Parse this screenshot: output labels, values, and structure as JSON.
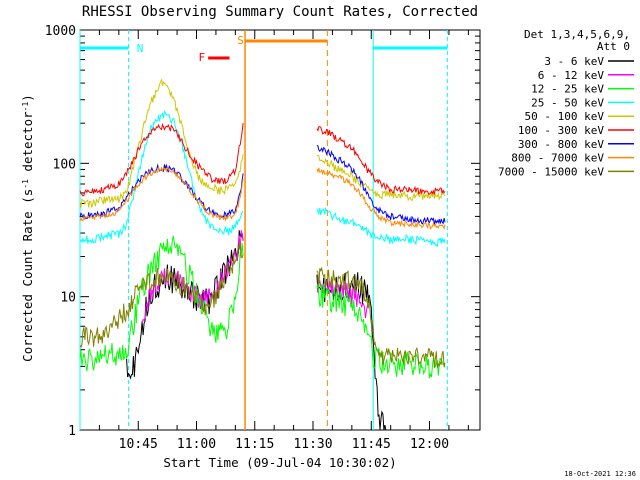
{
  "chart_data": {
    "type": "line",
    "title": "RHESSI Observing Summary Count Rates, Corrected",
    "xlabel": "Start Time (09-Jul-04 10:30:02)",
    "ylabel_main": "Corrected Count Rate (s",
    "ylabel_sup1": "-1",
    "ylabel_mid": " detector",
    "ylabel_sup2": "-1",
    "ylabel_end": ")",
    "ylabel": "Corrected Count Rate (s-1 detector-1)",
    "yscale": "log",
    "ylim": [
      1,
      1000
    ],
    "xlim_min": [
      0,
      103
    ],
    "y_ticks": [
      {
        "value": 1,
        "label": "1"
      },
      {
        "value": 10,
        "label": "10"
      },
      {
        "value": 100,
        "label": "100"
      },
      {
        "value": 1000,
        "label": "1000"
      }
    ],
    "x_ticks": [
      {
        "min": 15,
        "label": "10:45"
      },
      {
        "min": 30,
        "label": "11:00"
      },
      {
        "min": 45,
        "label": "11:15"
      },
      {
        "min": 60,
        "label": "11:30"
      },
      {
        "min": 75,
        "label": "11:45"
      },
      {
        "min": 90,
        "label": "12:00"
      }
    ],
    "legend_title": [
      "Det 1,3,4,5,6,9,",
      "Att 0"
    ],
    "legend_placement": "right",
    "timestamp": "18-Oct-2021 12:36",
    "gap": [
      42.5,
      61
    ],
    "series": [
      {
        "name": "3 - 6 keV",
        "color": "#000000",
        "points": [
          [
            12,
            2.8
          ],
          [
            13,
            2.6
          ],
          [
            14,
            3.3
          ],
          [
            15,
            4.2
          ],
          [
            16,
            6
          ],
          [
            17,
            8.5
          ],
          [
            18,
            11
          ],
          [
            20,
            13
          ],
          [
            22,
            14
          ],
          [
            24,
            14
          ],
          [
            26,
            13
          ],
          [
            28,
            11
          ],
          [
            30,
            10
          ],
          [
            32,
            9.5
          ],
          [
            34,
            10
          ],
          [
            36,
            13
          ],
          [
            38,
            17
          ],
          [
            40,
            22
          ],
          [
            41,
            26
          ],
          [
            42,
            33
          ]
        ],
        "points2": [
          [
            61,
            12
          ],
          [
            64,
            12
          ],
          [
            67,
            12
          ],
          [
            70,
            13
          ],
          [
            72,
            12
          ],
          [
            74,
            11
          ],
          [
            75,
            9
          ],
          [
            76,
            3
          ],
          [
            77,
            1.2
          ],
          [
            78,
            1.1
          ],
          [
            79,
            1.1
          ]
        ]
      },
      {
        "name": "6 - 12 keV",
        "color": "#ff00ff",
        "points": [
          [
            16,
            6.5
          ],
          [
            18,
            10
          ],
          [
            20,
            13
          ],
          [
            22,
            14
          ],
          [
            24,
            14
          ],
          [
            26,
            13
          ],
          [
            28,
            11
          ],
          [
            30,
            10
          ],
          [
            32,
            9.5
          ],
          [
            34,
            10
          ],
          [
            36,
            13
          ],
          [
            38,
            16
          ],
          [
            40,
            20
          ],
          [
            42,
            30
          ]
        ],
        "points2": [
          [
            61,
            12
          ],
          [
            65,
            11.5
          ],
          [
            69,
            11
          ],
          [
            72,
            9
          ],
          [
            74,
            8
          ]
        ]
      },
      {
        "name": "12 - 25 keV",
        "color": "#00ff00",
        "points": [
          [
            0,
            3.5
          ],
          [
            6,
            3.6
          ],
          [
            10,
            3.8
          ],
          [
            12,
            4.2
          ],
          [
            14,
            7
          ],
          [
            16,
            12
          ],
          [
            18,
            16
          ],
          [
            20,
            20
          ],
          [
            22,
            23
          ],
          [
            24,
            24
          ],
          [
            26,
            20
          ],
          [
            28,
            15
          ],
          [
            30,
            11
          ],
          [
            32,
            8
          ],
          [
            34,
            6
          ],
          [
            36,
            5.2
          ],
          [
            38,
            6
          ],
          [
            40,
            10
          ],
          [
            41,
            16
          ],
          [
            42,
            25
          ]
        ],
        "points2": [
          [
            61,
            11
          ],
          [
            64,
            10
          ],
          [
            67,
            9.5
          ],
          [
            70,
            8.5
          ],
          [
            72,
            7
          ],
          [
            74,
            5
          ],
          [
            76,
            3.5
          ],
          [
            80,
            3.2
          ],
          [
            85,
            3.2
          ],
          [
            90,
            3
          ],
          [
            94,
            3
          ]
        ]
      },
      {
        "name": "25 - 50 keV",
        "color": "#00ffff",
        "points": [
          [
            0,
            26
          ],
          [
            6,
            28
          ],
          [
            10,
            30
          ],
          [
            12,
            35
          ],
          [
            14,
            60
          ],
          [
            16,
            110
          ],
          [
            18,
            180
          ],
          [
            20,
            220
          ],
          [
            22,
            230
          ],
          [
            24,
            210
          ],
          [
            26,
            150
          ],
          [
            28,
            90
          ],
          [
            30,
            52
          ],
          [
            32,
            38
          ],
          [
            34,
            33
          ],
          [
            36,
            31
          ],
          [
            38,
            31
          ],
          [
            40,
            34
          ],
          [
            41,
            38
          ],
          [
            42,
            45
          ]
        ],
        "points2": [
          [
            61,
            45
          ],
          [
            64,
            42
          ],
          [
            67,
            38
          ],
          [
            70,
            36
          ],
          [
            72,
            33
          ],
          [
            74,
            30
          ],
          [
            76,
            28
          ],
          [
            80,
            27
          ],
          [
            85,
            27
          ],
          [
            90,
            26
          ],
          [
            94,
            26
          ]
        ]
      },
      {
        "name": "50 - 100 keV",
        "color": "#ccc800",
        "points": [
          [
            0,
            50
          ],
          [
            6,
            52
          ],
          [
            10,
            55
          ],
          [
            12,
            62
          ],
          [
            14,
            100
          ],
          [
            16,
            170
          ],
          [
            18,
            280
          ],
          [
            20,
            360
          ],
          [
            21,
            400
          ],
          [
            22,
            390
          ],
          [
            24,
            300
          ],
          [
            26,
            200
          ],
          [
            28,
            120
          ],
          [
            30,
            85
          ],
          [
            32,
            70
          ],
          [
            34,
            65
          ],
          [
            36,
            63
          ],
          [
            38,
            64
          ],
          [
            40,
            70
          ],
          [
            41,
            85
          ],
          [
            42,
            120
          ]
        ],
        "points2": [
          [
            61,
            110
          ],
          [
            64,
            100
          ],
          [
            67,
            90
          ],
          [
            70,
            80
          ],
          [
            72,
            72
          ],
          [
            74,
            65
          ],
          [
            76,
            60
          ],
          [
            80,
            58
          ],
          [
            85,
            57
          ],
          [
            90,
            57
          ],
          [
            94,
            57
          ]
        ]
      },
      {
        "name": "100 - 300 keV",
        "color": "#ff0000",
        "points": [
          [
            0,
            60
          ],
          [
            6,
            63
          ],
          [
            10,
            70
          ],
          [
            12,
            85
          ],
          [
            14,
            110
          ],
          [
            16,
            140
          ],
          [
            18,
            170
          ],
          [
            20,
            185
          ],
          [
            22,
            190
          ],
          [
            24,
            180
          ],
          [
            26,
            150
          ],
          [
            28,
            120
          ],
          [
            30,
            100
          ],
          [
            32,
            85
          ],
          [
            34,
            76
          ],
          [
            36,
            73
          ],
          [
            38,
            76
          ],
          [
            40,
            90
          ],
          [
            41,
            130
          ],
          [
            42,
            190
          ]
        ],
        "points2": [
          [
            61,
            180
          ],
          [
            64,
            170
          ],
          [
            67,
            150
          ],
          [
            70,
            130
          ],
          [
            72,
            110
          ],
          [
            74,
            90
          ],
          [
            76,
            75
          ],
          [
            78,
            68
          ],
          [
            80,
            64
          ],
          [
            85,
            63
          ],
          [
            90,
            62
          ],
          [
            94,
            62
          ]
        ]
      },
      {
        "name": "300 - 800 keV",
        "color": "#0000ff",
        "points": [
          [
            0,
            40
          ],
          [
            6,
            42
          ],
          [
            10,
            46
          ],
          [
            12,
            55
          ],
          [
            14,
            68
          ],
          [
            16,
            78
          ],
          [
            18,
            87
          ],
          [
            20,
            92
          ],
          [
            22,
            93
          ],
          [
            24,
            88
          ],
          [
            26,
            78
          ],
          [
            28,
            66
          ],
          [
            30,
            56
          ],
          [
            32,
            48
          ],
          [
            34,
            43
          ],
          [
            36,
            41
          ],
          [
            38,
            41
          ],
          [
            40,
            44
          ],
          [
            41,
            55
          ],
          [
            42,
            80
          ]
        ],
        "points2": [
          [
            61,
            130
          ],
          [
            64,
            120
          ],
          [
            67,
            105
          ],
          [
            70,
            90
          ],
          [
            72,
            75
          ],
          [
            74,
            60
          ],
          [
            76,
            48
          ],
          [
            78,
            42
          ],
          [
            80,
            40
          ],
          [
            85,
            38
          ],
          [
            90,
            37
          ],
          [
            94,
            37
          ]
        ]
      },
      {
        "name": "800 - 7000 keV",
        "color": "#ff8800",
        "points": [
          [
            0,
            38
          ],
          [
            6,
            40
          ],
          [
            10,
            44
          ],
          [
            12,
            52
          ],
          [
            14,
            65
          ],
          [
            16,
            75
          ],
          [
            18,
            84
          ],
          [
            20,
            90
          ],
          [
            22,
            91
          ],
          [
            24,
            86
          ],
          [
            26,
            76
          ],
          [
            28,
            64
          ],
          [
            30,
            54
          ],
          [
            32,
            46
          ],
          [
            34,
            41
          ],
          [
            36,
            39
          ],
          [
            38,
            39
          ],
          [
            40,
            42
          ],
          [
            41,
            52
          ],
          [
            42,
            75
          ]
        ],
        "points2": [
          [
            61,
            90
          ],
          [
            64,
            85
          ],
          [
            67,
            78
          ],
          [
            70,
            70
          ],
          [
            72,
            60
          ],
          [
            74,
            50
          ],
          [
            76,
            42
          ],
          [
            78,
            38
          ],
          [
            80,
            36
          ],
          [
            85,
            35
          ],
          [
            90,
            34
          ],
          [
            94,
            34
          ]
        ]
      },
      {
        "name": "7000 - 15000 keV",
        "color": "#808000",
        "points": [
          [
            0,
            5
          ],
          [
            6,
            5
          ],
          [
            8,
            6
          ],
          [
            10,
            7
          ],
          [
            12,
            8
          ],
          [
            14,
            10
          ],
          [
            16,
            12
          ],
          [
            18,
            13.5
          ],
          [
            20,
            14
          ],
          [
            22,
            14
          ],
          [
            24,
            13.5
          ],
          [
            26,
            12.5
          ],
          [
            28,
            11
          ],
          [
            30,
            9.5
          ],
          [
            32,
            8.5
          ],
          [
            34,
            9
          ],
          [
            36,
            12
          ],
          [
            38,
            15
          ],
          [
            40,
            19
          ],
          [
            42,
            24
          ]
        ],
        "points2": [
          [
            61,
            14
          ],
          [
            64,
            14
          ],
          [
            67,
            13.5
          ],
          [
            70,
            13
          ],
          [
            72,
            12
          ],
          [
            74,
            10
          ],
          [
            75,
            7
          ],
          [
            76,
            4
          ],
          [
            78,
            3.5
          ],
          [
            82,
            3.5
          ],
          [
            88,
            3.5
          ],
          [
            94,
            3.5
          ]
        ]
      }
    ],
    "annotations": {
      "night_label": "N",
      "saa_label": "S",
      "flare_label": "F",
      "night_color": "#00ffff",
      "saa_color": "#ff8800",
      "flare_color": "#ff0000"
    }
  }
}
